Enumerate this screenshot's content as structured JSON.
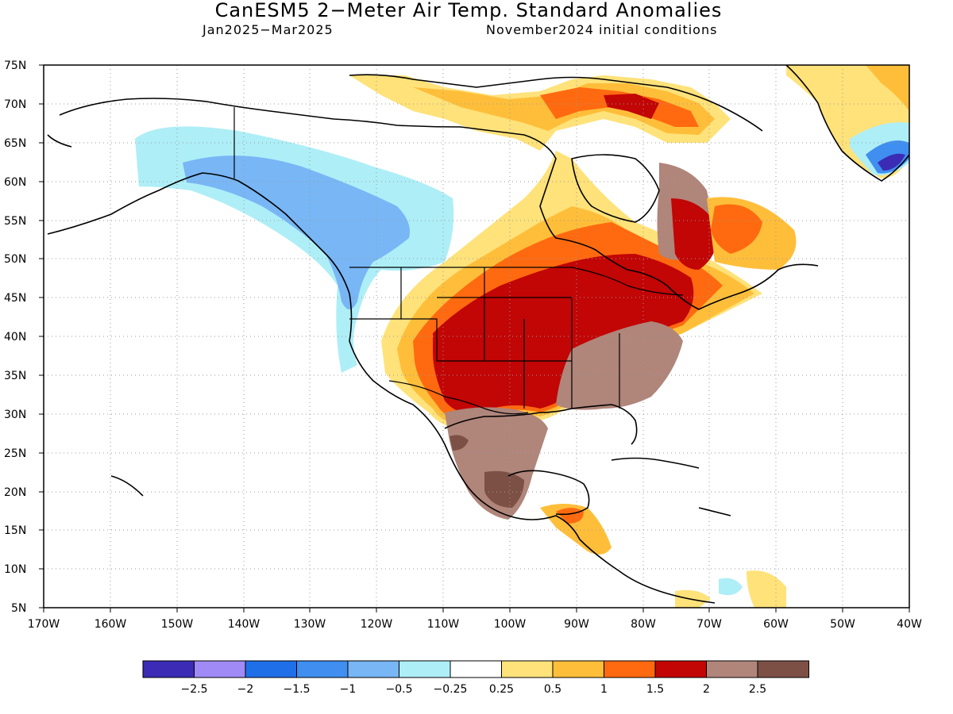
{
  "title": "CanESM5 2−Meter Air Temp. Standard Anomalies",
  "subtitle_left": "Jan2025−Mar2025",
  "subtitle_right": "November2024 initial conditions",
  "lat_labels": [
    "75N",
    "70N",
    "65N",
    "60N",
    "55N",
    "50N",
    "45N",
    "40N",
    "35N",
    "30N",
    "25N",
    "20N",
    "15N",
    "10N",
    "5N"
  ],
  "lon_labels": [
    "170W",
    "160W",
    "150W",
    "140W",
    "130W",
    "120W",
    "110W",
    "100W",
    "90W",
    "80W",
    "70W",
    "60W",
    "50W",
    "40W"
  ],
  "legend": {
    "colors": [
      "#3b2bb5",
      "#a08af5",
      "#1f6fe8",
      "#3f8ef0",
      "#78b6f5",
      "#aeeef7",
      "#ffffff",
      "#ffe27a",
      "#ffbe3a",
      "#ff6a10",
      "#c20505",
      "#b0857a",
      "#7d5045"
    ],
    "labels": [
      "−2.5",
      "−2",
      "−1.5",
      "−1",
      "−0.5",
      "−0.25",
      "0.25",
      "0.5",
      "1",
      "1.5",
      "2",
      "2.5"
    ]
  }
}
